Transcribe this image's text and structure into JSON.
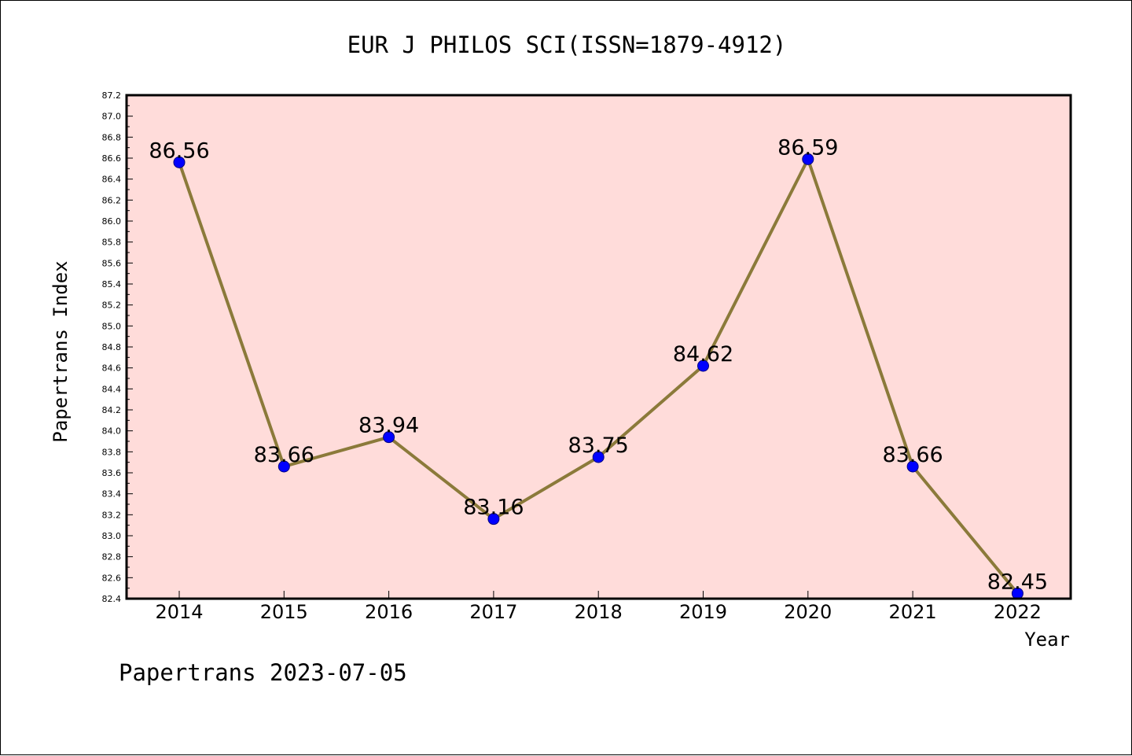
{
  "chart_data": {
    "type": "line",
    "title": "EUR J PHILOS SCI(ISSN=1879-4912)",
    "xlabel": "Year",
    "ylabel": "Papertrans Index",
    "footer": "Papertrans 2023-07-05",
    "categories": [
      "2014",
      "2015",
      "2016",
      "2017",
      "2018",
      "2019",
      "2020",
      "2021",
      "2022"
    ],
    "series": [
      {
        "values": [
          86.56,
          83.66,
          83.94,
          83.16,
          83.75,
          84.62,
          86.59,
          83.66,
          82.45
        ]
      }
    ],
    "data_labels": [
      "86.56",
      "83.66",
      "83.94",
      "83.16",
      "83.75",
      "84.62",
      "86.59",
      "83.66",
      "82.45"
    ],
    "ylim": [
      82.4,
      87.2
    ],
    "ytick_step": 0.2,
    "y_tick_labels": [
      "82.4",
      "82.6",
      "82.8",
      "83.0",
      "83.2",
      "83.4",
      "83.6",
      "83.8",
      "84.0",
      "84.2",
      "84.4",
      "84.6",
      "84.8",
      "85.0",
      "85.2",
      "85.4",
      "85.6",
      "85.8",
      "86.0",
      "86.2",
      "86.4",
      "86.6",
      "86.8",
      "87.0",
      "87.2"
    ],
    "grid": false,
    "legend": "none",
    "colors": {
      "plot_background": "#ffdcda",
      "line": "#8b7a3a",
      "marker": "#0000ff",
      "marker_edge": "#000080",
      "axis": "#000000"
    }
  }
}
